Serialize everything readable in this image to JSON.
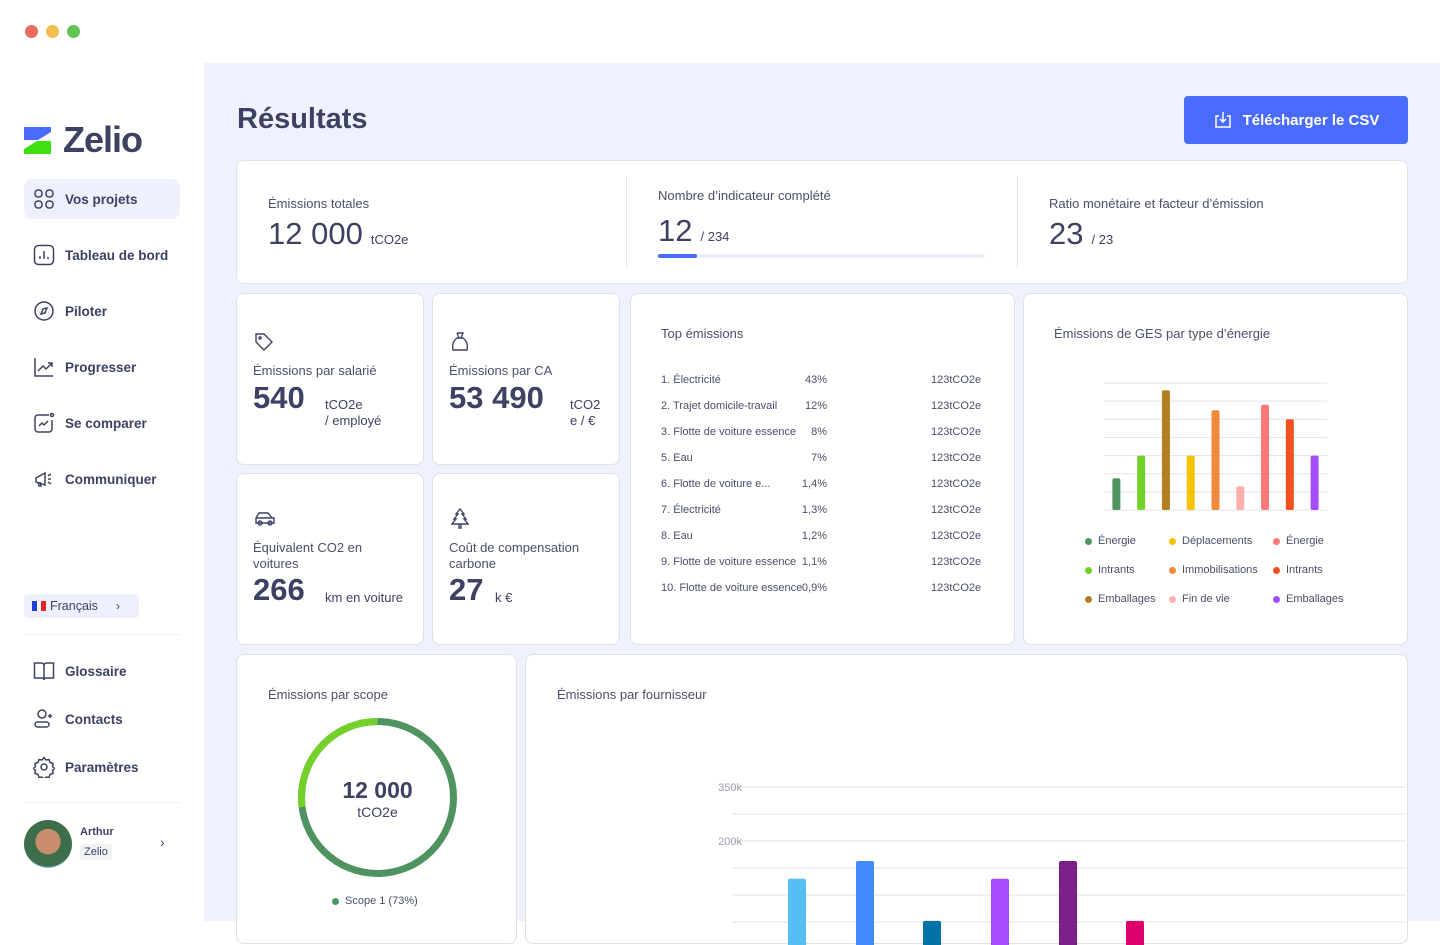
{
  "window": {
    "controls": [
      "close",
      "minimize",
      "maximize"
    ],
    "control_colors": [
      "#ec6a5e",
      "#f4bf4f",
      "#61c554"
    ]
  },
  "brand": {
    "name": "Zelio",
    "logo_colors": [
      "#4a6bff",
      "#3ee011"
    ]
  },
  "sidebar": {
    "items": [
      {
        "label": "Vos projets",
        "icon": "grid-icon",
        "active": true
      },
      {
        "label": "Tableau de bord",
        "icon": "bar-chart-icon"
      },
      {
        "label": "Piloter",
        "icon": "compass-icon"
      },
      {
        "label": "Progresser",
        "icon": "trend-up-icon"
      },
      {
        "label": "Se comparer",
        "icon": "compare-chart-icon"
      },
      {
        "label": "Communiquer",
        "icon": "megaphone-icon"
      }
    ],
    "language": "Français",
    "bottom_items": [
      {
        "label": "Glossaire",
        "icon": "book-icon"
      },
      {
        "label": "Contacts",
        "icon": "add-user-icon"
      },
      {
        "label": "Paramètres",
        "icon": "gear-icon"
      }
    ],
    "user": {
      "name": "Arthur",
      "company": "Zelio"
    }
  },
  "header": {
    "title": "Résultats",
    "download_label": "Télécharger le CSV",
    "accent": "#4a6bff"
  },
  "summary": [
    {
      "label": "Émissions totales",
      "value": "12 000",
      "unit": "tCO2e"
    },
    {
      "label": "Nombre d’indicateur complété",
      "value": "12",
      "unit": "/ 234",
      "progress": 0.12
    },
    {
      "label": "Ratio monétaire et facteur d’émission",
      "value": "23",
      "unit": "/ 23"
    }
  ],
  "kpis": [
    {
      "label": "Émissions par salarié",
      "value": "540",
      "unit1": "tCO2e",
      "unit2": "/ employé",
      "icon": "tag-icon"
    },
    {
      "label": "Émissions par CA",
      "value": "53 490",
      "unit1": "tCO2",
      "unit2": "e / €",
      "icon": "money-bag-icon"
    },
    {
      "label": "Équivalent CO2 en voitures",
      "value": "266",
      "unit1": "km en voiture",
      "icon": "car-icon"
    },
    {
      "label": "Coût de compensation carbone",
      "value": "27",
      "unit1": "k €",
      "icon": "tree-icon"
    }
  ],
  "top_emissions": {
    "title": "Top émissions",
    "rows": [
      [
        "1. Électricité",
        "43%",
        "123tCO2e"
      ],
      [
        "2. Trajet domicile-travail",
        "12%",
        "123tCO2e"
      ],
      [
        "3. Flotte de voiture essence",
        "8%",
        "123tCO2e"
      ],
      [
        "5. Eau",
        "7%",
        "123tCO2e"
      ],
      [
        "6. Flotte de voiture e...",
        "1,4%",
        "123tCO2e"
      ],
      [
        "7. Électricité",
        "1,3%",
        "123tCO2e"
      ],
      [
        "8. Eau",
        "1,2%",
        "123tCO2e"
      ],
      [
        "9. Flotte de voiture essence",
        "1,1%",
        "123tCO2e"
      ],
      [
        "10. Flotte de voiture essence",
        "0,9%",
        "123tCO2e"
      ]
    ]
  },
  "scope": {
    "title": "Émissions par scope",
    "total": "12 000",
    "unit": "tCO2e",
    "legend": "Scope 1 (73%)",
    "share": 0.73,
    "colors": [
      "#4f9460",
      "#74d12a"
    ]
  },
  "chart_data": [
    {
      "type": "bar",
      "title": "Émissions de GES par type d’énergie",
      "categories": [
        "Énergie",
        "Intrants",
        "Emballages",
        "Déplacements",
        "Immobilisations",
        "Fin de vie",
        "Énergie",
        "Intrants",
        "Emballages"
      ],
      "values": [
        1.75,
        3,
        6.6,
        3,
        5.5,
        1.3,
        5.8,
        5,
        3
      ],
      "colors": [
        "#4f9460",
        "#74d12a",
        "#b57f1f",
        "#f5c400",
        "#f08a3c",
        "#ffb0ad",
        "#ff7777",
        "#f4511e",
        "#a64dff"
      ],
      "ylim": [
        0,
        7
      ],
      "grid": true,
      "legend": "bottom"
    },
    {
      "type": "bar",
      "title": "Émissions par fournisseur",
      "values": [
        180,
        213,
        102,
        180,
        213,
        102
      ],
      "colors": [
        "#56bef5",
        "#428bfa",
        "#0073a6",
        "#a64dff",
        "#7b1f8a",
        "#db006b"
      ],
      "ylim": [
        0,
        350
      ],
      "tick_labels": [
        "350k",
        "200k"
      ],
      "grid": true
    }
  ]
}
